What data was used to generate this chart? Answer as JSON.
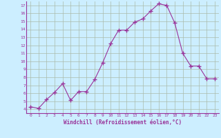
{
  "x": [
    0,
    1,
    2,
    3,
    4,
    5,
    6,
    7,
    8,
    9,
    10,
    11,
    12,
    13,
    14,
    15,
    16,
    17,
    18,
    19,
    20,
    21,
    22,
    23
  ],
  "y": [
    4.3,
    4.1,
    5.2,
    6.1,
    7.2,
    5.1,
    6.2,
    6.2,
    7.7,
    9.8,
    12.2,
    13.9,
    13.9,
    14.9,
    15.3,
    16.3,
    17.2,
    17.0,
    14.8,
    11.0,
    9.4,
    9.4,
    7.8,
    7.8
  ],
  "line_color": "#993399",
  "marker": "+",
  "marker_size": 4,
  "bg_color": "#cceeff",
  "grid_color": "#aabbaa",
  "xlabel": "Windchill (Refroidissement éolien,°C)",
  "xlabel_color": "#993399",
  "tick_color": "#993399",
  "xlim": [
    -0.5,
    23.5
  ],
  "ylim": [
    3.5,
    17.5
  ],
  "yticks": [
    4,
    5,
    6,
    7,
    8,
    9,
    10,
    11,
    12,
    13,
    14,
    15,
    16,
    17
  ],
  "xticks": [
    0,
    1,
    2,
    3,
    4,
    5,
    6,
    7,
    8,
    9,
    10,
    11,
    12,
    13,
    14,
    15,
    16,
    17,
    18,
    19,
    20,
    21,
    22,
    23
  ]
}
